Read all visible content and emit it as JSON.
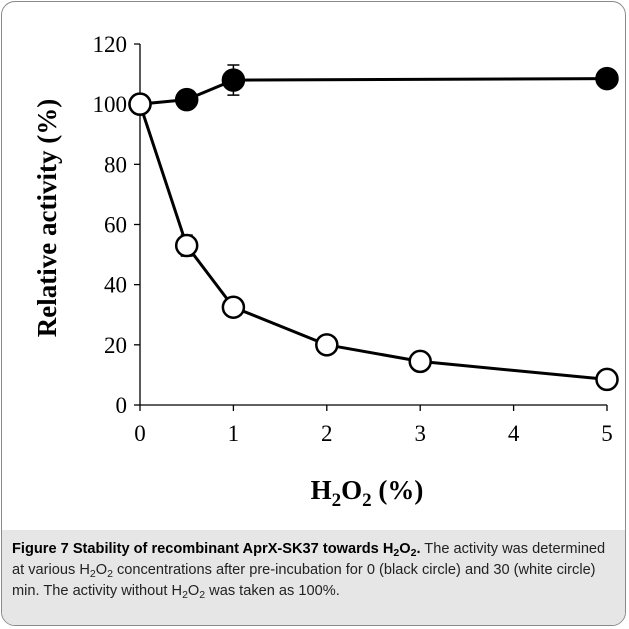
{
  "chart_data": {
    "type": "line",
    "x_ticks": [
      "0",
      "1",
      "2",
      "3",
      "4",
      "5"
    ],
    "y_ticks": [
      "0",
      "20",
      "40",
      "60",
      "80",
      "100",
      "120"
    ],
    "xlim": [
      0,
      5
    ],
    "ylim": [
      0,
      120
    ],
    "xlabel_main": "H",
    "xlabel_sub1": "2",
    "xlabel_mid": "O",
    "xlabel_sub2": "2",
    "xlabel_tail": " (%)",
    "ylabel": "Relative activity (%)",
    "grid": false,
    "series": [
      {
        "marker": "filled-circle",
        "x": [
          0,
          0.5,
          1,
          5
        ],
        "y": [
          100,
          101.5,
          108,
          108.5
        ],
        "yerr": [
          0,
          0,
          5,
          0
        ]
      },
      {
        "marker": "open-circle",
        "x": [
          0,
          0.5,
          1,
          2,
          3,
          5
        ],
        "y": [
          100,
          53,
          32.5,
          20,
          14.5,
          8.5
        ],
        "yerr": [
          0,
          3.5,
          0,
          0,
          0,
          0
        ]
      }
    ]
  },
  "caption": {
    "title_a": "Figure 7 Stability of recombinant AprX-SK37 towards H",
    "title_sub1": "2",
    "title_b": "O",
    "title_sub2": "2",
    "title_end": ".",
    "line1_a": " The activity was determined at various H",
    "line1_sub1": "2",
    "line1_b": "O",
    "line1_sub2": "2",
    "line1_c": " concentrations after pre-incubation for 0 (black circle) and 30 (white circle) min. The activity without H",
    "line1_sub3": "2",
    "line1_d": "O",
    "line1_sub4": "2",
    "line1_e": " was taken as 100%."
  }
}
